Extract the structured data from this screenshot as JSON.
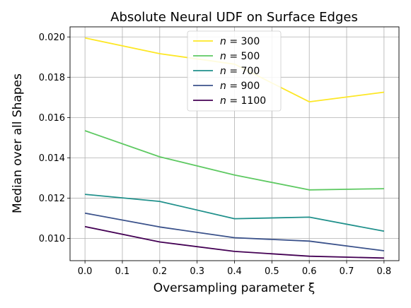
{
  "chart_data": {
    "type": "line",
    "title": "Absolute Neural UDF on Surface Edges",
    "xlabel": "Oversampling parameter ξ",
    "ylabel": "Median over all Shapes",
    "xlim": [
      -0.04,
      0.84
    ],
    "ylim": [
      0.0089,
      0.0205
    ],
    "xticks": [
      0.0,
      0.1,
      0.2,
      0.3,
      0.4,
      0.5,
      0.6,
      0.7,
      0.8
    ],
    "xtick_labels": [
      "0.0",
      "0.1",
      "0.2",
      "0.3",
      "0.4",
      "0.5",
      "0.6",
      "0.7",
      "0.8"
    ],
    "yticks": [
      0.01,
      0.012,
      0.014,
      0.016,
      0.018,
      0.02
    ],
    "ytick_labels": [
      "0.010",
      "0.012",
      "0.014",
      "0.016",
      "0.018",
      "0.020"
    ],
    "grid": true,
    "legend_position": "upper center",
    "x": [
      0.0,
      0.2,
      0.4,
      0.6,
      0.8
    ],
    "series": [
      {
        "name": "n = 300",
        "name_var": "n",
        "name_value": "= 300",
        "color": "#fde725",
        "values": [
          0.01995,
          0.01917,
          0.01865,
          0.01678,
          0.01726
        ]
      },
      {
        "name": "n = 500",
        "name_var": "n",
        "name_value": "= 500",
        "color": "#5ec962",
        "values": [
          0.01535,
          0.01405,
          0.01315,
          0.01241,
          0.01247
        ]
      },
      {
        "name": "n = 700",
        "name_var": "n",
        "name_value": "= 700",
        "color": "#21918c",
        "values": [
          0.01219,
          0.01184,
          0.01098,
          0.01106,
          0.01036
        ]
      },
      {
        "name": "n = 900",
        "name_var": "n",
        "name_value": "= 900",
        "color": "#3b528b",
        "values": [
          0.01126,
          0.01057,
          0.01004,
          0.00987,
          0.00939
        ]
      },
      {
        "name": "n = 1100",
        "name_var": "n",
        "name_value": "= 1100",
        "color": "#440154",
        "values": [
          0.01059,
          0.00983,
          0.00936,
          0.00912,
          0.00903
        ]
      }
    ]
  }
}
